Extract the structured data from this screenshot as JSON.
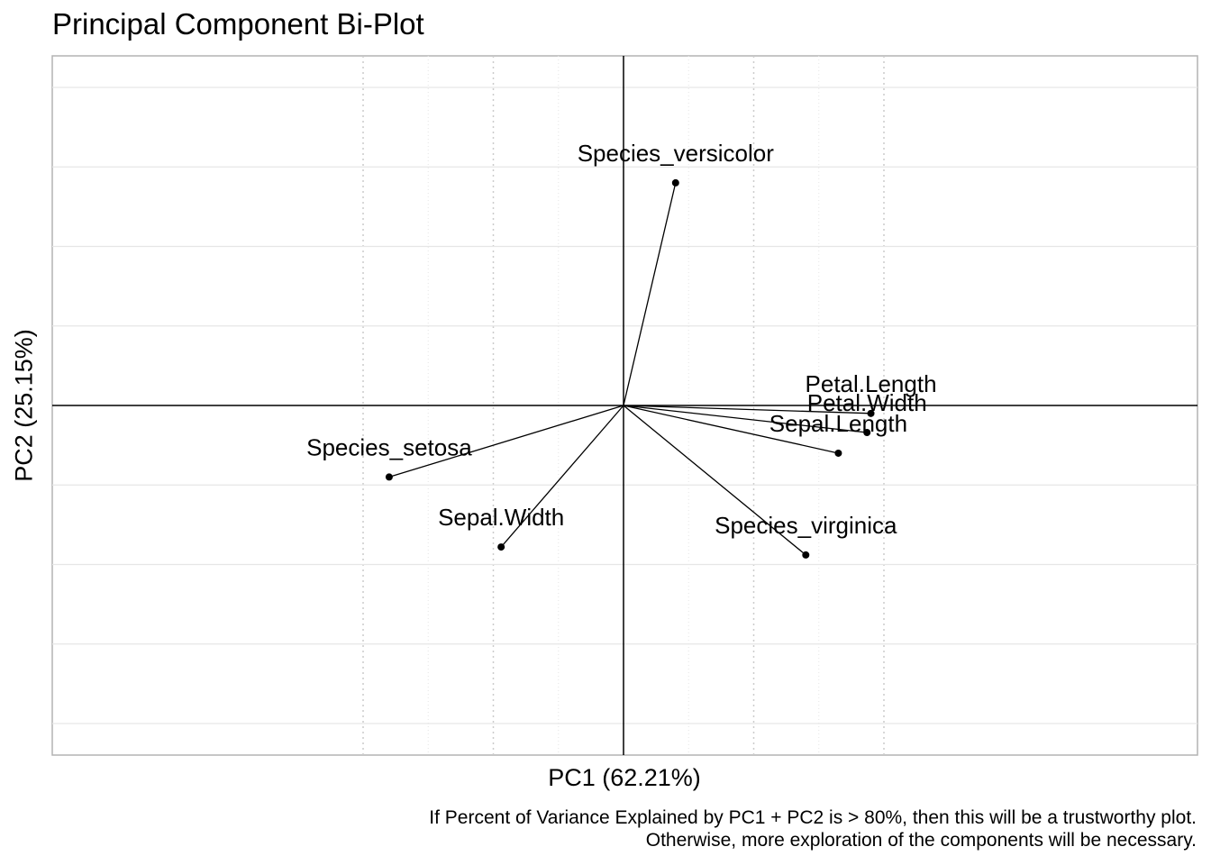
{
  "chart_data": {
    "type": "scatter",
    "title": "Principal Component Bi-Plot",
    "xlabel": "PC1 (62.21%)",
    "ylabel": "PC2 (25.15%)",
    "caption": [
      "If Percent of Variance Explained by PC1 + PC2 is > 80%, then this will be a trustworthy plot.",
      "Otherwise, more exploration of the components will be necessary."
    ],
    "xlim": [
      -2.2,
      2.2
    ],
    "ylim": [
      -2.2,
      2.2
    ],
    "grid": true,
    "axis_lines_at_origin": true,
    "arrows_from_origin": true,
    "points": [
      {
        "label": "Species_versicolor",
        "x": 0.4,
        "y": 1.4
      },
      {
        "label": "Petal.Length",
        "x": 1.9,
        "y": -0.05
      },
      {
        "label": "Petal.Width",
        "x": 1.87,
        "y": -0.17
      },
      {
        "label": "Sepal.Length",
        "x": 1.65,
        "y": -0.3
      },
      {
        "label": "Species_setosa",
        "x": -1.8,
        "y": -0.45
      },
      {
        "label": "Sepal.Width",
        "x": -0.94,
        "y": -0.89
      },
      {
        "label": "Species_virginica",
        "x": 1.4,
        "y": -0.94
      }
    ],
    "colors": {
      "panel_border": "#b3b3b3",
      "grid": "#e6e6e6",
      "minor_grid_dotted": "#cccccc",
      "axis_line": "#000000",
      "point": "#000000"
    }
  }
}
